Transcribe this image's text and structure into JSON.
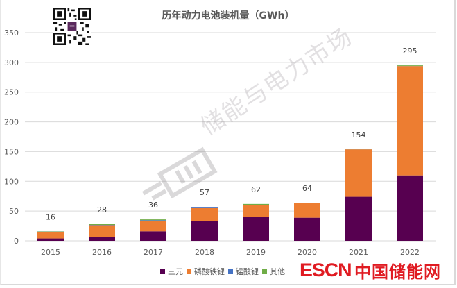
{
  "chart_data": {
    "type": "bar",
    "stacked": true,
    "title": "历年动力电池装机量（GWh）",
    "xlabel": "",
    "ylabel": "",
    "ylim": [
      0,
      350
    ],
    "yticks": [
      0,
      50,
      100,
      150,
      200,
      250,
      300,
      350
    ],
    "grid": true,
    "legend_position": "bottom",
    "categories": [
      "2015",
      "2016",
      "2017",
      "2018",
      "2019",
      "2020",
      "2021",
      "2022"
    ],
    "series": [
      {
        "name": "三元",
        "color": "#570050",
        "values": [
          4,
          6.3,
          16,
          33,
          40,
          38.9,
          74,
          110
        ]
      },
      {
        "name": "磷酸铁锂",
        "color": "#ed7d31",
        "values": [
          11.2,
          20,
          17.5,
          22,
          20,
          24.4,
          79.8,
          183.8
        ]
      },
      {
        "name": "锰酸锂",
        "color": "#4472c4",
        "values": [
          0.3,
          0.5,
          1.2,
          1,
          0.2,
          0.1,
          0.1,
          0.1
        ]
      },
      {
        "name": "其他",
        "color": "#70ad47",
        "values": [
          0.5,
          1.2,
          1.3,
          1,
          1.8,
          0.6,
          0.1,
          1.1
        ]
      }
    ],
    "totals": [
      16,
      28,
      36,
      57,
      62,
      64,
      154,
      295
    ],
    "data_labels": [
      "16",
      "28",
      "36",
      "57",
      "62",
      "64",
      "154",
      "295"
    ]
  },
  "legend": {
    "items": [
      {
        "label": "三元",
        "color": "#570050"
      },
      {
        "label": "磷酸铁锂",
        "color": "#ed7d31"
      },
      {
        "label": "锰酸锂",
        "color": "#4472c4"
      },
      {
        "label": "其他",
        "color": "#70ad47"
      }
    ]
  },
  "branding": {
    "logo_en": "ESCN",
    "logo_cn": "中国储能网",
    "logo_color": "#e01b22",
    "watermark_text": "储能与电力市场"
  }
}
